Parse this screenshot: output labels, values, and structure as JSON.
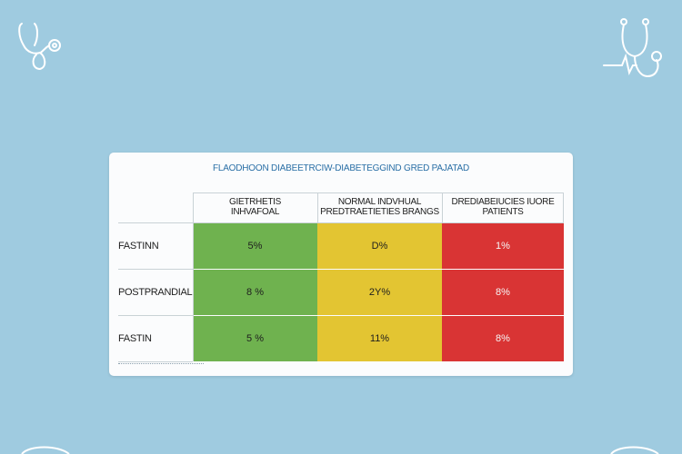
{
  "title": "FLAODHOON DIABEETRCIW-DIABETEGGIND GRED PAJATAD",
  "columns": [
    "GIETRHETIS\nINHVAFOAL",
    "NORMAL INDVHUAL\nPREDTRAETIETIES BRANGS",
    "DREDIABEIUCIES IUORE\nPATIENTS"
  ],
  "rows": [
    {
      "label": "FASTINN",
      "values": [
        "5%",
        "D%",
        "1%"
      ]
    },
    {
      "label": "POSTPRANDIAL",
      "values": [
        "8 %",
        "2Y%",
        "8%"
      ]
    },
    {
      "label": "FASTIN",
      "values": [
        "5 %",
        "11%",
        "8%"
      ]
    }
  ],
  "colors": {
    "background": "#9fcbe0",
    "normal": "#6fb24f",
    "prediabetes": "#e3c532",
    "diabetes": "#d93434"
  },
  "icons": [
    "stethoscope-icon",
    "stethoscope-icon"
  ]
}
